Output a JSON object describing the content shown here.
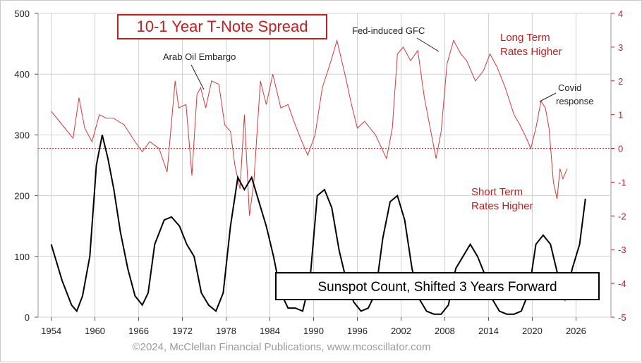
{
  "chart_data": {
    "type": "line",
    "title": "10-1 Year T-Note Spread",
    "legend_label": "Sunspot Count, Shifted 3 Years Forward",
    "copyright": "©2024, McClellan Financial Publications, www.mcoscillator.com",
    "x_ticks": [
      "1954",
      "1960",
      "1966",
      "1972",
      "1978",
      "1984",
      "1990",
      "1996",
      "2002",
      "2008",
      "2014",
      "2020",
      "2026"
    ],
    "left_axis": {
      "ticks": [
        "0",
        "100",
        "200",
        "300",
        "400",
        "500"
      ],
      "range": [
        0,
        500
      ]
    },
    "right_axis": {
      "ticks": [
        "-5",
        "-4",
        "-3",
        "-2",
        "-1",
        "0",
        "1",
        "2",
        "3",
        "4"
      ],
      "range": [
        -5,
        4
      ]
    },
    "x_range": [
      1952.2,
      2030.8
    ],
    "grid": true,
    "reference_line": {
      "axis": "right",
      "value": 0
    },
    "annotations": [
      "Arab Oil Embargo",
      "Fed-induced GFC",
      "Long Term",
      "Rates Higher",
      "Covid",
      "response",
      "Short Term",
      "Rates Higher"
    ],
    "series": [
      {
        "axis": "right",
        "color": "#d23a3a",
        "x": [
          1954.0,
          1955.5,
          1957.0,
          1957.8,
          1958.6,
          1959.6,
          1960.6,
          1961.5,
          1962.5,
          1964.0,
          1965.5,
          1966.5,
          1967.5,
          1968.8,
          1969.9,
          1971.0,
          1971.5,
          1972.5,
          1973.3,
          1974.0,
          1974.5,
          1975.2,
          1976.0,
          1977.0,
          1977.8,
          1978.6,
          1979.2,
          1979.9,
          1980.5,
          1981.2,
          1981.8,
          1982.7,
          1983.5,
          1984.4,
          1985.5,
          1986.5,
          1987.3,
          1988.2,
          1989.2,
          1990.2,
          1991.2,
          1992.4,
          1993.2,
          1994.3,
          1995.2,
          1996.0,
          1997.0,
          1998.5,
          2000.0,
          2000.8,
          2001.5,
          2002.3,
          2003.3,
          2004.3,
          2005.2,
          2006.0,
          2006.8,
          2007.5,
          2008.3,
          2009.2,
          2010.2,
          2011.0,
          2012.2,
          2013.3,
          2014.2,
          2015.2,
          2016.3,
          2017.5,
          2018.3,
          2019.2,
          2019.8,
          2020.5,
          2021.2,
          2021.8,
          2022.3,
          2022.9,
          2023.4,
          2023.8,
          2024.2,
          2024.8
        ],
        "y": [
          1.1,
          0.7,
          0.3,
          1.5,
          0.6,
          0.2,
          1.0,
          0.9,
          0.9,
          0.7,
          0.2,
          -0.1,
          0.2,
          0.0,
          -0.7,
          2.0,
          1.2,
          1.3,
          -0.8,
          1.6,
          1.8,
          1.2,
          2.0,
          1.9,
          0.7,
          0.5,
          -0.5,
          -1.2,
          1.0,
          -2.0,
          -1.0,
          2.0,
          1.3,
          2.2,
          1.2,
          1.3,
          0.8,
          0.3,
          -0.2,
          0.4,
          1.8,
          2.6,
          3.2,
          2.2,
          1.3,
          0.6,
          0.8,
          0.4,
          -0.3,
          0.6,
          2.8,
          3.0,
          2.6,
          2.9,
          1.5,
          0.6,
          -0.3,
          0.5,
          2.5,
          3.2,
          2.8,
          2.6,
          2.0,
          2.3,
          2.8,
          2.4,
          1.8,
          1.0,
          0.7,
          0.3,
          0.0,
          0.6,
          1.4,
          1.2,
          0.6,
          -1.0,
          -1.5,
          -0.6,
          -0.9,
          -0.6
        ]
      },
      {
        "axis": "left",
        "color": "#000000",
        "x": [
          1954.0,
          1955.5,
          1956.8,
          1957.5,
          1958.3,
          1959.3,
          1960.2,
          1961.0,
          1961.8,
          1962.6,
          1963.5,
          1964.5,
          1965.5,
          1966.5,
          1967.3,
          1968.2,
          1969.5,
          1970.5,
          1971.6,
          1972.6,
          1973.6,
          1974.6,
          1975.6,
          1976.6,
          1977.6,
          1978.6,
          1979.6,
          1980.5,
          1981.5,
          1982.5,
          1983.5,
          1984.5,
          1985.5,
          1986.5,
          1987.5,
          1988.5,
          1989.5,
          1990.5,
          1991.5,
          1992.5,
          1993.5,
          1994.5,
          1995.5,
          1996.5,
          1997.5,
          1998.5,
          1999.5,
          2000.5,
          2001.5,
          2002.5,
          2003.5,
          2004.5,
          2005.5,
          2006.5,
          2007.5,
          2008.5,
          2009.5,
          2010.5,
          2011.5,
          2012.5,
          2013.5,
          2014.5,
          2015.5,
          2016.5,
          2017.5,
          2018.5,
          2019.5,
          2020.5,
          2021.5,
          2022.5,
          2023.5,
          2024.5,
          2025.5,
          2026.5,
          2027.3
        ],
        "y": [
          120,
          60,
          20,
          10,
          35,
          100,
          250,
          300,
          260,
          210,
          140,
          80,
          35,
          20,
          40,
          120,
          160,
          165,
          150,
          120,
          100,
          40,
          20,
          10,
          40,
          150,
          230,
          210,
          230,
          190,
          150,
          100,
          40,
          15,
          15,
          10,
          60,
          200,
          210,
          180,
          110,
          60,
          25,
          10,
          15,
          40,
          130,
          190,
          200,
          160,
          80,
          30,
          10,
          5,
          5,
          20,
          80,
          100,
          120,
          100,
          70,
          30,
          10,
          5,
          5,
          10,
          40,
          120,
          135,
          120,
          70,
          30,
          80,
          120,
          195
        ]
      }
    ]
  }
}
